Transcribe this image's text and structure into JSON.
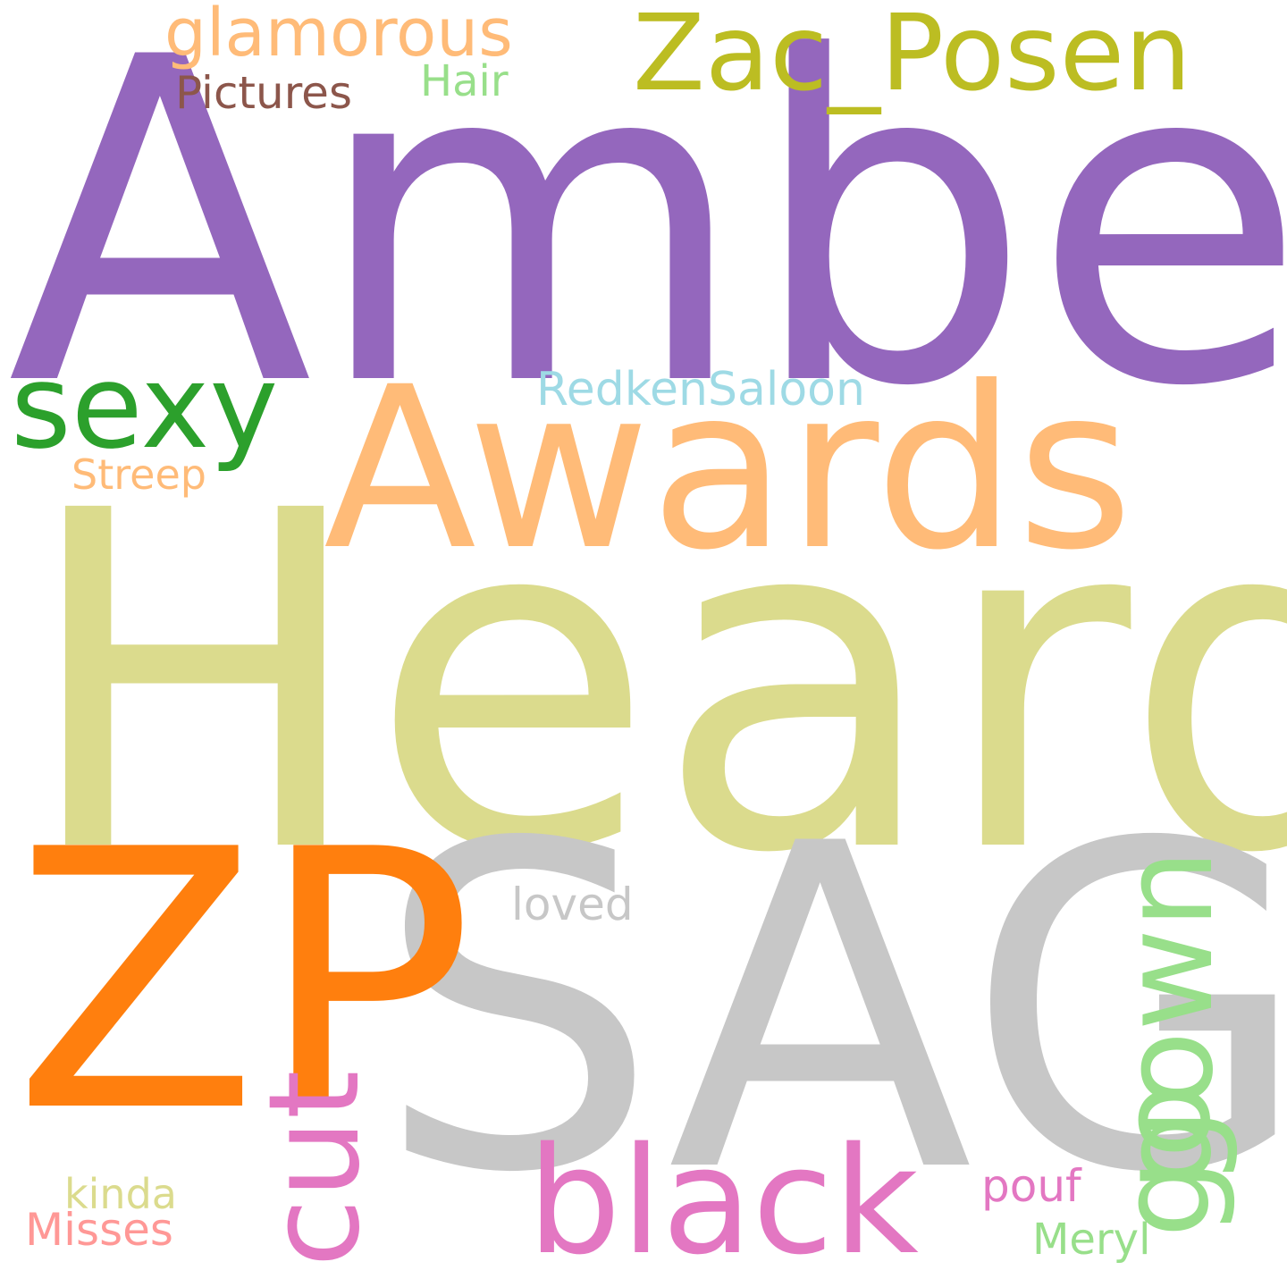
{
  "words": [
    {
      "text": "Amber",
      "color": "#9467bd"
    },
    {
      "text": "Heard",
      "color": "#dbdb8d"
    },
    {
      "text": "SAG",
      "color": "#c7c7c7"
    },
    {
      "text": "ZP",
      "color": "#ff7f0e"
    },
    {
      "text": "Awards",
      "color": "#ffbb78"
    },
    {
      "text": "Zac_Posen",
      "color": "#bcbd22"
    },
    {
      "text": "sexy",
      "color": "#2ca02c"
    },
    {
      "text": "black",
      "color": "#e377c2"
    },
    {
      "text": "gown",
      "color": "#98df8a"
    },
    {
      "text": "cut",
      "color": "#e377c2"
    },
    {
      "text": "glamorous",
      "color": "#ffbb78"
    },
    {
      "text": "Pictures",
      "color": "#8c564b"
    },
    {
      "text": "Hair",
      "color": "#98df8a"
    },
    {
      "text": "RedkenSaloon",
      "color": "#9edae5"
    },
    {
      "text": "Streep",
      "color": "#ffbb78"
    },
    {
      "text": "loved",
      "color": "#c7c7c7"
    },
    {
      "text": "kinda",
      "color": "#dbdb8d"
    },
    {
      "text": "Misses",
      "color": "#ff9896"
    },
    {
      "text": "pouf",
      "color": "#e377c2"
    },
    {
      "text": "Meryl",
      "color": "#98df8a"
    },
    {
      "text": "go",
      "color": "#98df8a"
    }
  ]
}
